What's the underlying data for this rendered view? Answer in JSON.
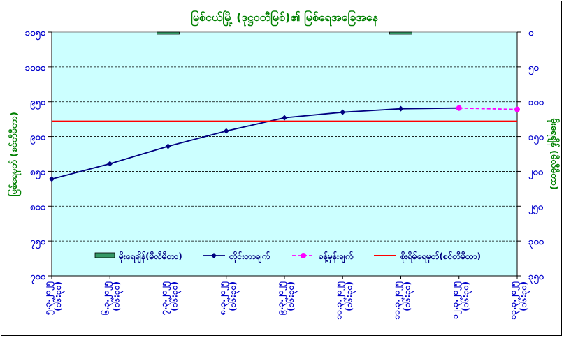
{
  "chart_data": {
    "type": "line",
    "title": "မြစ်ငယ်မြို့ (ဒုဋ္ဌဝတီမြစ်)၏ မြစ်ရေအခြေအနေ",
    "ylabel_left": "မြစ်ရေမှတ် (စင်တီမီတာ)",
    "ylabel_right": "မိုးရေချိန် (မီလီမီတာ)",
    "y_left": {
      "min": 700,
      "max": 1050,
      "step": 50,
      "tick_labels": [
        "၇၀၀",
        "၇၅၀",
        "၈၀၀",
        "၈၅၀",
        "၉၀၀",
        "၉၅၀",
        "၁၀၀၀",
        "၁၀၅၀"
      ]
    },
    "y_right": {
      "min": 0,
      "max": 350,
      "step": 50,
      "inverted": true,
      "tick_labels": [
        "၀",
        "၅၀",
        "၁၀၀",
        "၁၅၀",
        "၂၀၀",
        "၂၅၀",
        "၃၀၀",
        "၃၅၀"
      ]
    },
    "categories": [
      [
        "၅.၃.၂၀၂၅",
        "(၀၆:၃၀)"
      ],
      [
        "၆.၃.၂၀၂၅",
        "(၀၆:၃၀)"
      ],
      [
        "၇.၃.၂၀၂၅",
        "(၀၆:၃၀)"
      ],
      [
        "၈.၃.၂၀၂၅",
        "(၀၆:၃၀)"
      ],
      [
        "၉.၃.၂၀၂၅",
        "(၀၆:၃၀)"
      ],
      [
        "၁၀.၃.၂၀၂၅",
        "(၀၆:၃၀)"
      ],
      [
        "၁၁.၃.၂၀၂၅",
        "(၀၆:၃၀)"
      ],
      [
        "၁၂.၃.၂၀၂၅",
        "(၀၆:၃၀)"
      ],
      [
        "၁၃.၃.၂၀၂၅",
        "(၀၆:၃၀)"
      ]
    ],
    "series": [
      {
        "name": "မိုးရေချိန်(မီလီမီတာ)",
        "kind": "bar",
        "axis": "right",
        "color": "#339966",
        "values": [
          null,
          null,
          3,
          null,
          null,
          null,
          3,
          null,
          null
        ]
      },
      {
        "name": "တိုင်းတာချက်",
        "kind": "line",
        "axis": "left",
        "color": "#000080",
        "marker": "diamond",
        "values": [
          839,
          861,
          886,
          908,
          927,
          935,
          940,
          941,
          null
        ]
      },
      {
        "name": "ခန့်မှန်းချက်",
        "kind": "line",
        "axis": "left",
        "color": "#ff00ff",
        "dashed": true,
        "marker": "circle",
        "values": [
          null,
          null,
          null,
          null,
          null,
          null,
          null,
          941,
          939
        ]
      },
      {
        "name": "စိုးရိမ်ရေမှတ်(စင်တီမီတာ)",
        "kind": "hline",
        "axis": "left",
        "color": "#ff0000",
        "value": 922
      }
    ],
    "grid": true,
    "legend_position": "bottom-inside",
    "plot_background": "#ccffff"
  }
}
